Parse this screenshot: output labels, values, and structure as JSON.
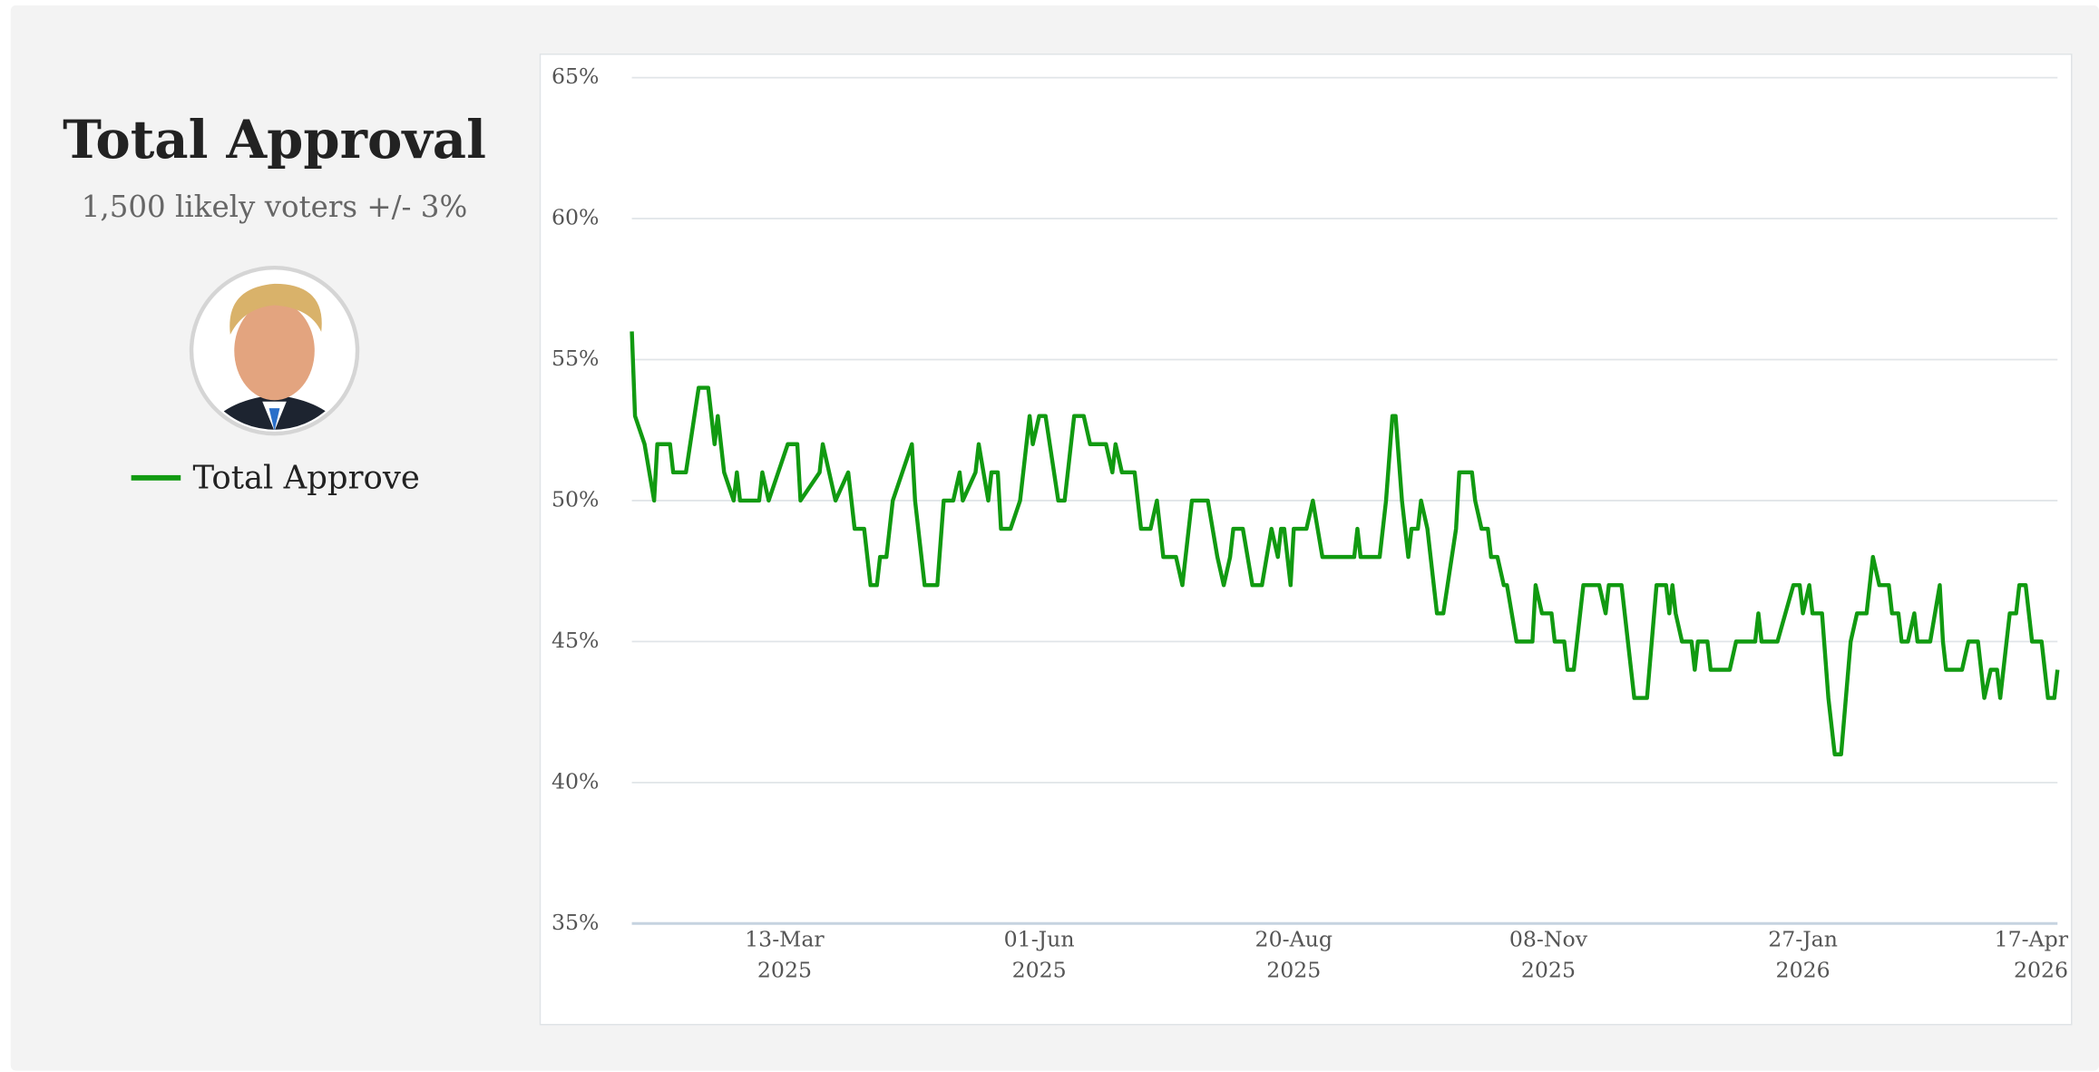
{
  "chart_data": {
    "type": "line",
    "title": "Total Approval",
    "subtitle": "1,500 likely voters +/- 3%",
    "x": [
      "2025-01-24",
      "2025-01-25",
      "2025-01-28",
      "2025-01-31",
      "2025-02-01",
      "2025-02-05",
      "2025-02-06",
      "2025-02-10",
      "2025-02-14",
      "2025-02-17",
      "2025-02-19",
      "2025-02-20",
      "2025-02-22",
      "2025-02-25",
      "2025-02-26",
      "2025-02-27",
      "2025-03-05",
      "2025-03-06",
      "2025-03-08",
      "2025-03-14",
      "2025-03-17",
      "2025-03-18",
      "2025-03-24",
      "2025-03-25",
      "2025-03-29",
      "2025-04-02",
      "2025-04-04",
      "2025-04-07",
      "2025-04-09",
      "2025-04-11",
      "2025-04-12",
      "2025-04-14",
      "2025-04-16",
      "2025-04-19",
      "2025-04-22",
      "2025-04-23",
      "2025-04-26",
      "2025-04-30",
      "2025-05-02",
      "2025-05-05",
      "2025-05-07",
      "2025-05-08",
      "2025-05-12",
      "2025-05-13",
      "2025-05-16",
      "2025-05-17",
      "2025-05-19",
      "2025-05-20",
      "2025-05-23",
      "2025-05-26",
      "2025-05-29",
      "2025-05-30",
      "2025-06-01",
      "2025-06-03",
      "2025-06-07",
      "2025-06-09",
      "2025-06-12",
      "2025-06-15",
      "2025-06-17",
      "2025-06-22",
      "2025-06-24",
      "2025-06-25",
      "2025-06-27",
      "2025-07-01",
      "2025-07-03",
      "2025-07-06",
      "2025-07-08",
      "2025-07-10",
      "2025-07-14",
      "2025-07-16",
      "2025-07-19",
      "2025-07-24",
      "2025-07-27",
      "2025-07-29",
      "2025-07-31",
      "2025-08-01",
      "2025-08-04",
      "2025-08-07",
      "2025-08-10",
      "2025-08-13",
      "2025-08-15",
      "2025-08-16",
      "2025-08-17",
      "2025-08-19",
      "2025-08-20",
      "2025-08-24",
      "2025-08-26",
      "2025-08-29",
      "2025-09-08",
      "2025-09-09",
      "2025-09-10",
      "2025-09-16",
      "2025-09-18",
      "2025-09-20",
      "2025-09-21",
      "2025-09-23",
      "2025-09-25",
      "2025-09-26",
      "2025-09-28",
      "2025-09-29",
      "2025-10-01",
      "2025-10-04",
      "2025-10-06",
      "2025-10-10",
      "2025-10-11",
      "2025-10-15",
      "2025-10-16",
      "2025-10-18",
      "2025-10-20",
      "2025-10-21",
      "2025-10-23",
      "2025-10-25",
      "2025-10-26",
      "2025-10-29",
      "2025-11-03",
      "2025-11-04",
      "2025-11-06",
      "2025-11-09",
      "2025-11-10",
      "2025-11-13",
      "2025-11-14",
      "2025-11-16",
      "2025-11-19",
      "2025-11-24",
      "2025-11-26",
      "2025-11-27",
      "2025-12-01",
      "2025-12-05",
      "2025-12-09",
      "2025-12-12",
      "2025-12-15",
      "2025-12-16",
      "2025-12-17",
      "2025-12-18",
      "2025-12-20",
      "2025-12-23",
      "2025-12-24",
      "2025-12-25",
      "2025-12-28",
      "2025-12-29",
      "2026-01-04",
      "2026-01-06",
      "2026-01-07",
      "2026-01-12",
      "2026-01-13",
      "2026-01-14",
      "2026-01-19",
      "2026-01-24",
      "2026-01-26",
      "2026-01-27",
      "2026-01-29",
      "2026-01-30",
      "2026-02-02",
      "2026-02-04",
      "2026-02-06",
      "2026-02-08",
      "2026-02-11",
      "2026-02-13",
      "2026-02-16",
      "2026-02-18",
      "2026-02-20",
      "2026-02-23",
      "2026-02-24",
      "2026-02-26",
      "2026-02-27",
      "2026-03-01",
      "2026-03-03",
      "2026-03-04",
      "2026-03-08",
      "2026-03-11",
      "2026-03-12",
      "2026-03-13",
      "2026-03-18",
      "2026-03-20",
      "2026-03-23",
      "2026-03-25",
      "2026-03-27",
      "2026-03-29",
      "2026-03-30",
      "2026-04-02",
      "2026-04-04",
      "2026-04-05",
      "2026-04-07",
      "2026-04-09",
      "2026-04-12",
      "2026-04-14",
      "2026-04-16",
      "2026-04-17"
    ],
    "series": [
      {
        "name": "Total Approve",
        "color": "#119a11",
        "values": [
          56,
          53,
          52,
          50,
          52,
          52,
          51,
          51,
          54,
          54,
          52,
          53,
          51,
          50,
          51,
          50,
          50,
          51,
          50,
          52,
          52,
          50,
          51,
          52,
          50,
          51,
          49,
          49,
          47,
          47,
          48,
          48,
          50,
          51,
          52,
          50,
          47,
          47,
          50,
          50,
          51,
          50,
          51,
          52,
          50,
          51,
          51,
          49,
          49,
          50,
          53,
          52,
          53,
          53,
          50,
          50,
          53,
          53,
          52,
          52,
          51,
          52,
          51,
          51,
          49,
          49,
          50,
          48,
          48,
          47,
          50,
          50,
          48,
          47,
          48,
          49,
          49,
          47,
          47,
          49,
          48,
          49,
          49,
          47,
          49,
          49,
          50,
          48,
          48,
          49,
          48,
          48,
          50,
          53,
          53,
          50,
          48,
          49,
          49,
          50,
          49,
          46,
          46,
          49,
          51,
          51,
          50,
          49,
          49,
          48,
          48,
          47,
          47,
          45,
          45,
          47,
          46,
          46,
          45,
          45,
          44,
          44,
          47,
          47,
          46,
          47,
          47,
          43,
          43,
          47,
          47,
          46,
          47,
          46,
          45,
          45,
          44,
          45,
          45,
          44,
          44,
          45,
          45,
          45,
          46,
          45,
          45,
          47,
          47,
          46,
          47,
          46,
          46,
          43,
          41,
          41,
          45,
          46,
          46,
          48,
          47,
          47,
          46,
          46,
          45,
          45,
          46,
          45,
          45,
          47,
          45,
          44,
          44,
          45,
          45,
          43,
          44,
          44,
          43,
          46,
          46,
          47,
          47,
          45,
          45,
          43,
          43,
          44
        ]
      }
    ],
    "xlim": [
      "2025-01-24",
      "2026-04-17"
    ],
    "xticks": [
      {
        "value": "2025-03-13",
        "label": "13-Mar\n2025"
      },
      {
        "value": "2025-06-01",
        "label": "01-Jun\n2025"
      },
      {
        "value": "2025-08-20",
        "label": "20-Aug\n2025"
      },
      {
        "value": "2025-11-08",
        "label": "08-Nov\n2025"
      },
      {
        "value": "2026-01-27",
        "label": "27-Jan\n2026"
      },
      {
        "value": "2026-04-17",
        "label": "17-Apr\n2026"
      }
    ],
    "ylim": [
      35,
      65
    ],
    "yticks": [
      {
        "value": 35,
        "label": "35%"
      },
      {
        "value": 40,
        "label": "40%"
      },
      {
        "value": 45,
        "label": "45%"
      },
      {
        "value": 50,
        "label": "50%"
      },
      {
        "value": 55,
        "label": "55%"
      },
      {
        "value": 60,
        "label": "60%"
      },
      {
        "value": 65,
        "label": "65%"
      }
    ],
    "grid": true
  }
}
